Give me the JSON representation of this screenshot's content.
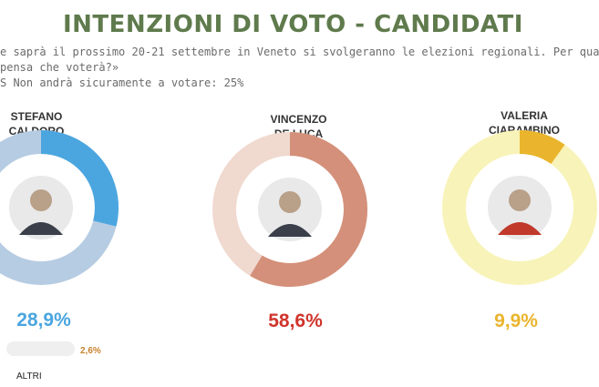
{
  "title": "INTENZIONI DI VOTO - CANDIDATI",
  "question_line1": "e saprà il prossimo 20-21 settembre in Veneto si svolgeranno le elezioni regionali. Per qua",
  "question_line2": "pensa che voterà?»",
  "question_line3": "S  Non andrà sicuramente a votare: 25%",
  "chart_data": {
    "type": "donut",
    "title": "INTENZIONI DI VOTO - CANDIDATI",
    "categories": [
      "STEFANO CALDORO",
      "VINCENZO DE LUCA",
      "VALERIA CIARAMBINO",
      "ALTRI"
    ],
    "values": [
      28.9,
      58.6,
      9.9,
      2.6
    ],
    "candidates": [
      {
        "name_line1": "STEFANO",
        "name_line2": "CALDORO",
        "value": 28.9,
        "label": "28,9%",
        "color": "#4ba6e0",
        "track_color": "#b6cce2",
        "label_color": "#4ba6e0"
      },
      {
        "name_line1": "VINCENZO",
        "name_line2": "DE LUCA",
        "value": 58.6,
        "label": "58,6%",
        "color": "#d4907a",
        "track_color": "#f0d9cf",
        "label_color": "#d0342c"
      },
      {
        "name_line1": "VALERIA",
        "name_line2": "CIARAMBINO",
        "value": 9.9,
        "label": "9,9%",
        "color": "#eab52d",
        "track_color": "#f8f3b8",
        "label_color": "#eab52d"
      }
    ],
    "others": {
      "name": "ALTRI",
      "value": 2.6,
      "label": "2,6%",
      "color": "#c8822e"
    }
  }
}
